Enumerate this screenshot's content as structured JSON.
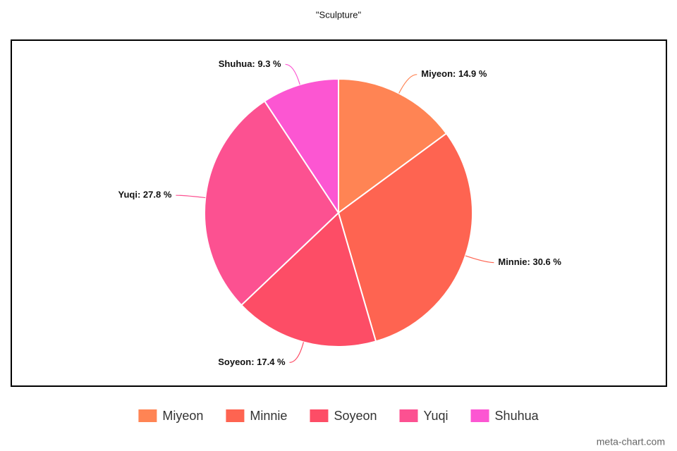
{
  "chart_data": {
    "type": "pie",
    "title": "\"Sculpture\"",
    "categories": [
      "Miyeon",
      "Minnie",
      "Soyeon",
      "Yuqi",
      "Shuhua"
    ],
    "values": [
      14.9,
      30.6,
      17.4,
      27.8,
      9.3
    ],
    "value_labels": [
      "Miyeon: 14.9 %",
      "Minnie: 30.6 %",
      "Soyeon: 17.4 %",
      "Yuqi: 27.8 %",
      "Shuhua: 9.3 %"
    ],
    "colors": [
      "#ff8454",
      "#fe6451",
      "#fd4d66",
      "#fc5191",
      "#fc56d2"
    ],
    "legend": "bottom",
    "watermark": "meta-chart.com"
  }
}
